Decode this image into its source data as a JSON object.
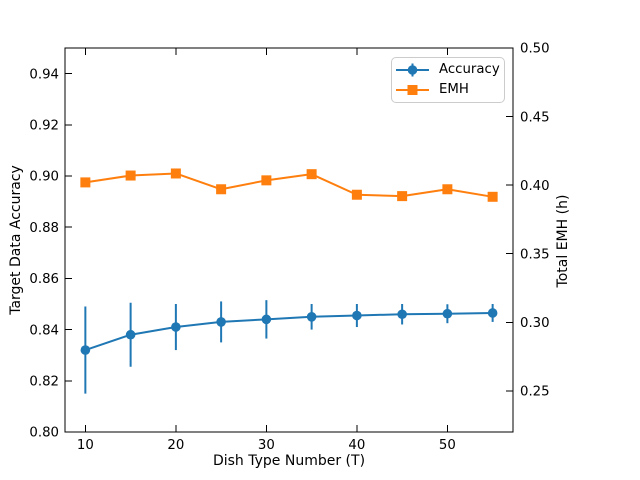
{
  "figure": {
    "background": "#ffffff",
    "text_color": "#000000"
  },
  "chart_data": {
    "type": "line",
    "title": "",
    "xlabel": "Dish Type Number (T)",
    "ylabel_left": "Target Data Accuracy",
    "ylabel_right": "Total EMH (h)",
    "x": [
      10,
      15,
      20,
      25,
      30,
      35,
      40,
      45,
      50,
      55
    ],
    "xlim": [
      7.75,
      57.25
    ],
    "ylim_left": [
      0.8,
      0.95
    ],
    "ylim_right": [
      0.22,
      0.5
    ],
    "xticks": {
      "values": [
        10,
        20,
        30,
        40,
        50
      ],
      "labels": [
        "10",
        "20",
        "30",
        "40",
        "50"
      ]
    },
    "yticks_left": {
      "values": [
        0.8,
        0.82,
        0.84,
        0.86,
        0.88,
        0.9,
        0.92,
        0.94
      ],
      "labels": [
        "0.80",
        "0.82",
        "0.84",
        "0.86",
        "0.88",
        "0.90",
        "0.92",
        "0.94"
      ]
    },
    "yticks_right": {
      "values": [
        0.25,
        0.3,
        0.35,
        0.4,
        0.45,
        0.5
      ],
      "labels": [
        "0.25",
        "0.30",
        "0.35",
        "0.40",
        "0.45",
        "0.50"
      ]
    },
    "grid": false,
    "legend": {
      "position": "upper right"
    },
    "series": [
      {
        "name": "Accuracy",
        "axis": "left",
        "color": "#1f77b4",
        "marker": "circle",
        "values": [
          0.832,
          0.838,
          0.841,
          0.843,
          0.844,
          0.845,
          0.8455,
          0.846,
          0.8462,
          0.8465
        ],
        "yerr": [
          0.017,
          0.0125,
          0.009,
          0.008,
          0.0075,
          0.005,
          0.0045,
          0.004,
          0.0037,
          0.0035
        ]
      },
      {
        "name": "EMH",
        "axis": "right",
        "color": "#ff7f0e",
        "marker": "square",
        "values": [
          0.402,
          0.407,
          0.4085,
          0.397,
          0.4035,
          0.408,
          0.393,
          0.392,
          0.397,
          0.3915
        ],
        "yerr": null
      }
    ]
  }
}
